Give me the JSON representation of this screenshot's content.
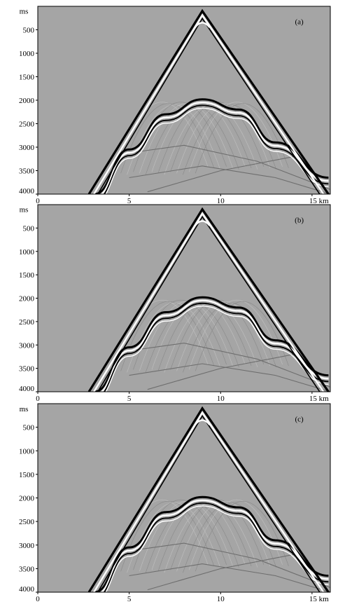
{
  "chart_data": [
    {
      "type": "line",
      "panel_label": "(a)",
      "ylabel": "ms",
      "xlabel": "",
      "x_unit": "km",
      "xlim": [
        0,
        16
      ],
      "ylim": [
        4000,
        0
      ],
      "x_ticks": [
        0,
        5,
        10,
        15
      ],
      "x_tick_labels": [
        "0",
        "5",
        "10",
        "15 km"
      ],
      "y_ticks": [
        500,
        1000,
        1500,
        2000,
        2500,
        3000,
        3500,
        4000
      ],
      "y_tick_labels": [
        "500",
        "1000",
        "1500",
        "2000",
        "2500",
        "3000",
        "3500",
        "4000"
      ],
      "grid": false,
      "colormap": "grayscale",
      "events": {
        "direct_wave": {
          "x": [
            2.8,
            9.0,
            15.9
          ],
          "y": [
            4000,
            100,
            4000
          ]
        },
        "reflection": {
          "x": [
            3.1,
            5,
            7,
            9,
            11,
            13,
            15.9
          ],
          "y": [
            4000,
            3050,
            2300,
            1980,
            2200,
            2900,
            3650
          ]
        }
      }
    },
    {
      "type": "line",
      "panel_label": "(b)",
      "ylabel": "ms",
      "xlabel": "",
      "x_unit": "km",
      "xlim": [
        0,
        16
      ],
      "ylim": [
        4000,
        0
      ],
      "x_ticks": [
        0,
        5,
        10,
        15
      ],
      "x_tick_labels": [
        "0",
        "5",
        "10",
        "15 km"
      ],
      "y_ticks": [
        500,
        1000,
        1500,
        2000,
        2500,
        3000,
        3500,
        4000
      ],
      "y_tick_labels": [
        "500",
        "1000",
        "1500",
        "2000",
        "2500",
        "3000",
        "3500",
        "4000"
      ],
      "grid": false,
      "colormap": "grayscale",
      "events": {
        "direct_wave": {
          "x": [
            2.8,
            9.0,
            15.9
          ],
          "y": [
            4000,
            100,
            4000
          ]
        },
        "reflection": {
          "x": [
            3.1,
            5,
            7,
            9,
            11,
            13,
            15.9
          ],
          "y": [
            4000,
            3050,
            2300,
            1980,
            2200,
            2900,
            3650
          ]
        }
      }
    },
    {
      "type": "line",
      "panel_label": "(c)",
      "ylabel": "ms",
      "xlabel": "",
      "x_unit": "km",
      "xlim": [
        0,
        16
      ],
      "ylim": [
        4000,
        0
      ],
      "x_ticks": [
        0,
        5,
        10,
        15
      ],
      "x_tick_labels": [
        "0",
        "5",
        "10",
        "15 km"
      ],
      "y_ticks": [
        500,
        1000,
        1500,
        2000,
        2500,
        3000,
        3500,
        4000
      ],
      "y_tick_labels": [
        "500",
        "1000",
        "1500",
        "2000",
        "2500",
        "3000",
        "3500",
        "4000"
      ],
      "grid": false,
      "colormap": "grayscale",
      "events": {
        "direct_wave": {
          "x": [
            2.8,
            9.0,
            15.9
          ],
          "y": [
            4000,
            100,
            4000
          ]
        },
        "reflection": {
          "x": [
            3.1,
            5,
            7,
            9,
            11,
            13,
            15.9
          ],
          "y": [
            4000,
            3050,
            2300,
            1980,
            2200,
            2900,
            3650
          ]
        }
      }
    }
  ],
  "colors": {
    "background": "#a5a5a5",
    "dark_event": "#000000",
    "light_event": "#ffffff",
    "axis": "#000000"
  }
}
